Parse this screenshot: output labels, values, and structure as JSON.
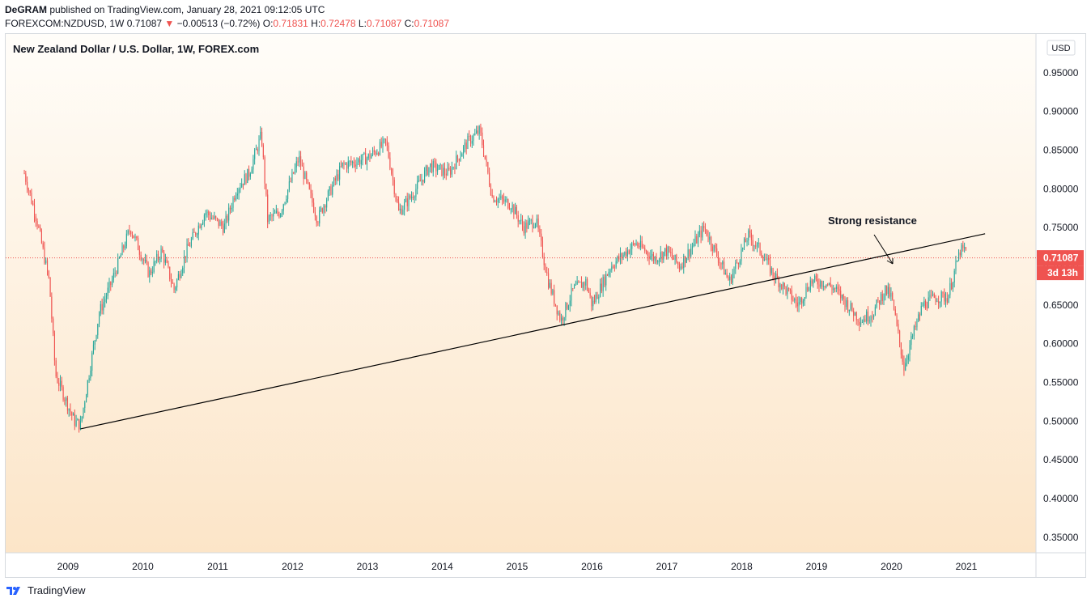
{
  "header": {
    "author": "DeGRAM",
    "published": "published on TradingView.com, January 28, 2021 09:12:05 UTC",
    "symbol": "FOREXCOM:NZDUSD, 1W",
    "last": "0.71087",
    "change_arrow": "▼",
    "change": "−0.00513 (−0.72%)",
    "o_label": "O:",
    "o_value": "0.71831",
    "h_label": "H:",
    "h_value": "0.72478",
    "l_label": "L:",
    "l_value": "0.71087",
    "c_label": "C:",
    "c_value": "0.71087"
  },
  "chart_data": {
    "type": "candlestick",
    "title": "New Zealand Dollar / U.S. Dollar, 1W, FOREX.com",
    "currency": "USD",
    "y_ticks": [
      "0.95000",
      "0.90000",
      "0.85000",
      "0.80000",
      "0.75000",
      "0.70000",
      "0.65000",
      "0.60000",
      "0.55000",
      "0.50000",
      "0.45000",
      "0.40000",
      "0.35000"
    ],
    "x_ticks": [
      "2009",
      "2010",
      "2011",
      "2012",
      "2013",
      "2014",
      "2015",
      "2016",
      "2017",
      "2018",
      "2019",
      "2020",
      "2021"
    ],
    "ylim": [
      0.33,
      1.0
    ],
    "last_price": {
      "label": "0.71087",
      "value": 0.71087,
      "countdown": "3d 13h"
    },
    "annotation": "Strong resistance",
    "trendline": {
      "from": [
        "2009-03",
        0.49
      ],
      "to": [
        "2021-04",
        0.742
      ]
    },
    "anchors": [
      [
        "2008-06",
        0.82
      ],
      [
        "2008-08",
        0.76
      ],
      [
        "2008-10",
        0.68
      ],
      [
        "2008-11",
        0.56
      ],
      [
        "2009-02",
        0.5
      ],
      [
        "2009-03",
        0.495
      ],
      [
        "2009-06",
        0.64
      ],
      [
        "2009-08",
        0.68
      ],
      [
        "2009-11",
        0.75
      ],
      [
        "2010-02",
        0.69
      ],
      [
        "2010-04",
        0.72
      ],
      [
        "2010-06",
        0.67
      ],
      [
        "2010-08",
        0.72
      ],
      [
        "2010-11",
        0.77
      ],
      [
        "2011-02",
        0.75
      ],
      [
        "2011-04",
        0.8
      ],
      [
        "2011-06",
        0.82
      ],
      [
        "2011-08",
        0.87
      ],
      [
        "2011-09",
        0.76
      ],
      [
        "2011-11",
        0.77
      ],
      [
        "2012-02",
        0.84
      ],
      [
        "2012-05",
        0.76
      ],
      [
        "2012-06",
        0.78
      ],
      [
        "2012-09",
        0.83
      ],
      [
        "2013-01",
        0.84
      ],
      [
        "2013-04",
        0.86
      ],
      [
        "2013-06",
        0.77
      ],
      [
        "2013-08",
        0.79
      ],
      [
        "2013-11",
        0.83
      ],
      [
        "2014-02",
        0.82
      ],
      [
        "2014-05",
        0.86
      ],
      [
        "2014-07",
        0.875
      ],
      [
        "2014-09",
        0.79
      ],
      [
        "2014-12",
        0.78
      ],
      [
        "2015-02",
        0.75
      ],
      [
        "2015-04",
        0.76
      ],
      [
        "2015-06",
        0.68
      ],
      [
        "2015-08",
        0.63
      ],
      [
        "2015-10",
        0.67
      ],
      [
        "2015-12",
        0.68
      ],
      [
        "2016-01",
        0.65
      ],
      [
        "2016-04",
        0.7
      ],
      [
        "2016-08",
        0.73
      ],
      [
        "2016-11",
        0.71
      ],
      [
        "2017-01",
        0.72
      ],
      [
        "2017-03",
        0.7
      ],
      [
        "2017-07",
        0.75
      ],
      [
        "2017-11",
        0.68
      ],
      [
        "2018-02",
        0.74
      ],
      [
        "2018-04",
        0.72
      ],
      [
        "2018-06",
        0.69
      ],
      [
        "2018-10",
        0.65
      ],
      [
        "2018-12",
        0.68
      ],
      [
        "2019-02",
        0.68
      ],
      [
        "2019-04",
        0.67
      ],
      [
        "2019-08",
        0.63
      ],
      [
        "2019-10",
        0.64
      ],
      [
        "2019-12",
        0.67
      ],
      [
        "2020-01",
        0.66
      ],
      [
        "2020-03",
        0.57
      ],
      [
        "2020-04",
        0.6
      ],
      [
        "2020-06",
        0.65
      ],
      [
        "2020-08",
        0.66
      ],
      [
        "2020-10",
        0.66
      ],
      [
        "2020-12",
        0.72
      ],
      [
        "2021-01",
        0.72
      ]
    ]
  }
}
